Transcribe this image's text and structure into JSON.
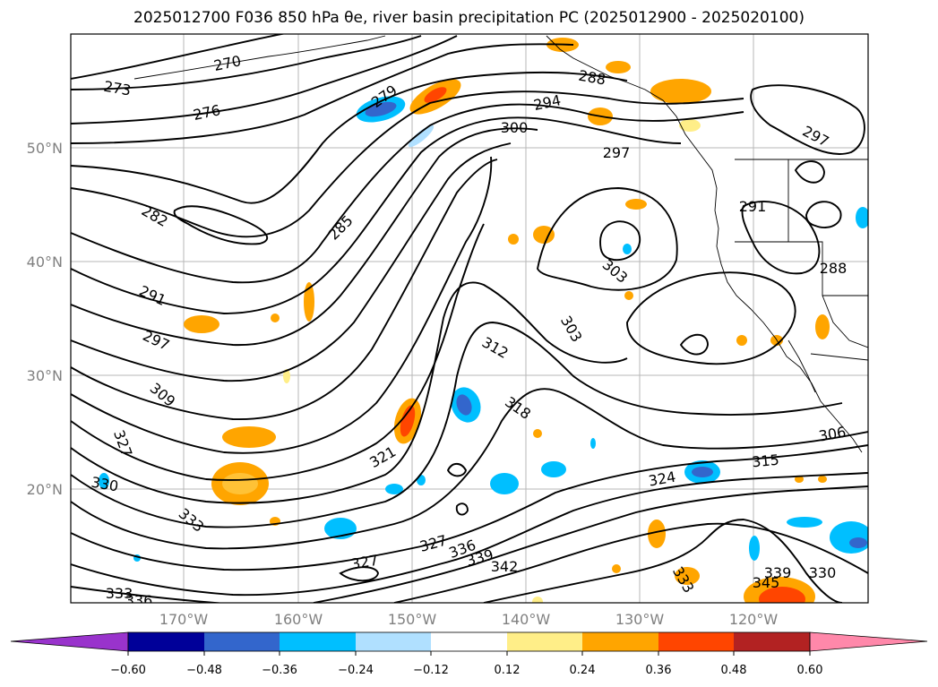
{
  "title": "2025012700 F036 850 hPa θe, river basin precipitation PC (2025012900 - 2025020100)",
  "map": {
    "lat_labels": [
      "50°N",
      "40°N",
      "30°N",
      "20°N"
    ],
    "lon_labels": [
      "170°W",
      "160°W",
      "150°W",
      "140°W",
      "130°W",
      "120°W"
    ],
    "contour_labels": [
      "270",
      "273",
      "276",
      "279",
      "282",
      "285",
      "288",
      "291",
      "294",
      "297",
      "300",
      "303",
      "306",
      "309",
      "312",
      "315",
      "318",
      "321",
      "324",
      "327",
      "330",
      "333",
      "336",
      "339",
      "342",
      "345"
    ],
    "line_color": "#000000",
    "grid_color": "#808080"
  },
  "colorbar": {
    "tick_labels": [
      "−0.60",
      "−0.48",
      "−0.36",
      "−0.24",
      "−0.12",
      "0.12",
      "0.24",
      "0.36",
      "0.48",
      "0.60"
    ],
    "colors": [
      "#9933cc",
      "#000099",
      "#3366cc",
      "#00bfff",
      "#b0e0ff",
      "#ffffff",
      "#ffee88",
      "#ffa500",
      "#ff4500",
      "#b22222",
      "#ff88aa"
    ]
  }
}
